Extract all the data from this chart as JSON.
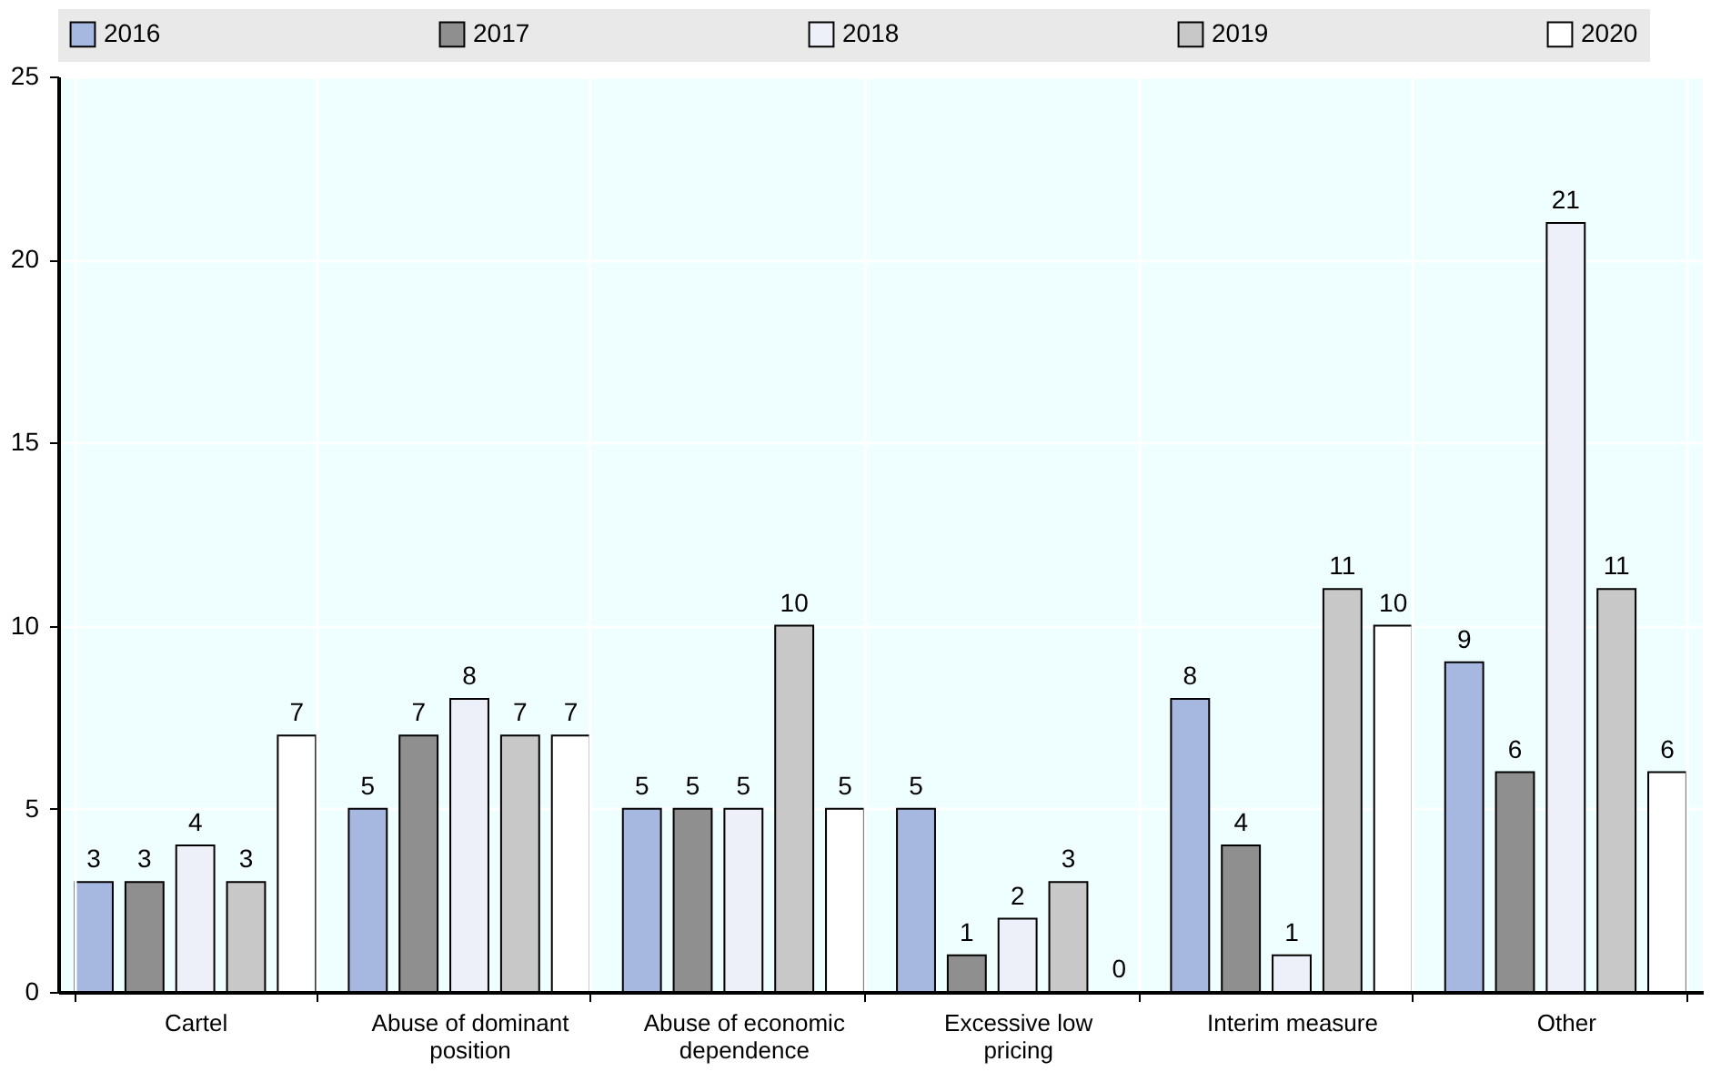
{
  "chart_data": {
    "type": "bar",
    "categories": [
      "Cartel",
      "Abuse of dominant position",
      "Abuse of economic dependence",
      "Excessive low pricing",
      "Interim measure",
      "Other"
    ],
    "series": [
      {
        "name": "2016",
        "color": "#a6b8e0",
        "values": [
          3,
          5,
          5,
          5,
          8,
          9
        ]
      },
      {
        "name": "2017",
        "color": "#8f8f8f",
        "values": [
          3,
          7,
          5,
          1,
          4,
          6
        ]
      },
      {
        "name": "2018",
        "color": "#edf0f8",
        "values": [
          4,
          8,
          5,
          2,
          1,
          21
        ]
      },
      {
        "name": "2019",
        "color": "#c8c8c8",
        "values": [
          3,
          7,
          10,
          3,
          11,
          11
        ]
      },
      {
        "name": "2020",
        "color": "#ffffff",
        "values": [
          7,
          7,
          5,
          0,
          10,
          6
        ]
      }
    ],
    "ylim": [
      0,
      25
    ],
    "yticks": [
      0,
      5,
      10,
      15,
      20,
      25
    ],
    "grid": true,
    "legend": "top",
    "data_labels": true
  }
}
